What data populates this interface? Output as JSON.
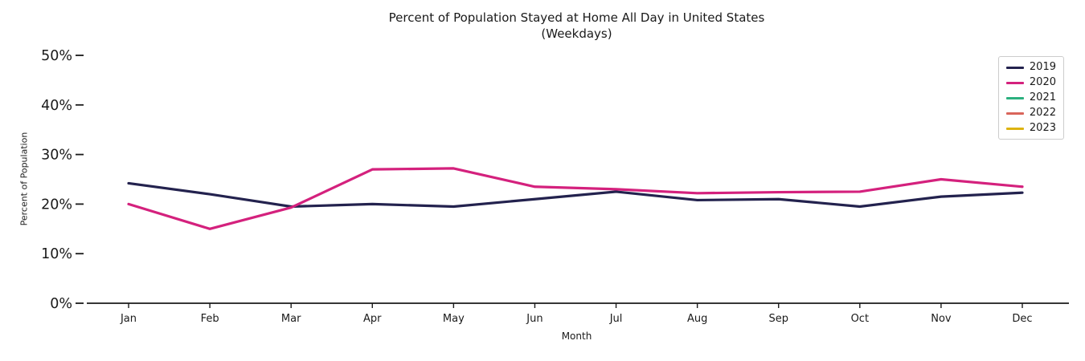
{
  "chart_data": {
    "type": "line",
    "title": "Percent of Population Stayed at Home All Day in United States",
    "subtitle": "(Weekdays)",
    "xlabel": "Month",
    "ylabel": "Percent of Population",
    "categories": [
      "Jan",
      "Feb",
      "Mar",
      "Apr",
      "May",
      "Jun",
      "Jul",
      "Aug",
      "Sep",
      "Oct",
      "Nov",
      "Dec"
    ],
    "series": [
      {
        "name": "2019",
        "color": "#23224e",
        "values": [
          24.2,
          22.0,
          19.5,
          20.0,
          19.5,
          21.0,
          22.5,
          20.8,
          21.0,
          19.5,
          21.5,
          22.3
        ]
      },
      {
        "name": "2020",
        "color": "#d4217d",
        "values": [
          20.0,
          15.0,
          19.3,
          27.0,
          27.2,
          23.5,
          23.0,
          22.2,
          22.4,
          22.5,
          25.0,
          23.5
        ]
      },
      {
        "name": "2021",
        "color": "#2bb07f",
        "values": []
      },
      {
        "name": "2022",
        "color": "#d9655b",
        "values": []
      },
      {
        "name": "2023",
        "color": "#ddb310",
        "values": []
      }
    ],
    "ylim": [
      0,
      50
    ],
    "yticks": [
      {
        "value": 0,
        "label": "0%"
      },
      {
        "value": 10,
        "label": "10%"
      },
      {
        "value": 20,
        "label": "20%"
      },
      {
        "value": 30,
        "label": "30%"
      },
      {
        "value": 40,
        "label": "40%"
      },
      {
        "value": 50,
        "label": "50%"
      }
    ],
    "grid": false,
    "legend_position": "upper right",
    "axis_color": "#1a1a1a"
  }
}
